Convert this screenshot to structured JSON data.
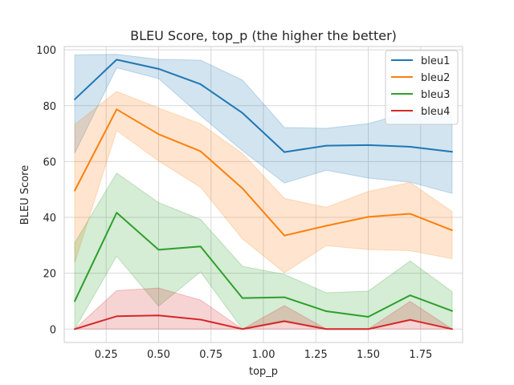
{
  "chart_data": {
    "type": "line",
    "title": "BLEU Score, top_p (the higher the better)",
    "xlabel": "top_p",
    "ylabel": "BLEU Score",
    "xlim": [
      0.05,
      1.95
    ],
    "ylim": [
      -4.8,
      101.2
    ],
    "xticks": [
      0.25,
      0.5,
      0.75,
      1.0,
      1.25,
      1.5,
      1.75
    ],
    "xtick_labels": [
      "0.25",
      "0.50",
      "0.75",
      "1.00",
      "1.25",
      "1.50",
      "1.75"
    ],
    "yticks": [
      0,
      20,
      40,
      60,
      80,
      100
    ],
    "ytick_labels": [
      "0",
      "20",
      "40",
      "60",
      "80",
      "100"
    ],
    "grid": true,
    "legend_position": "top-right",
    "x": [
      0.1,
      0.3,
      0.5,
      0.7,
      0.9,
      1.1,
      1.3,
      1.5,
      1.7,
      1.9
    ],
    "series": [
      {
        "name": "bleu1",
        "color": "#1f77b4",
        "values": [
          82.3,
          96.5,
          93.2,
          87.7,
          77.4,
          63.4,
          65.7,
          65.9,
          65.3,
          63.5
        ],
        "lower": [
          63.0,
          93.6,
          89.7,
          76.5,
          63.9,
          52.3,
          56.9,
          54.1,
          52.6,
          48.6
        ],
        "upper": [
          98.2,
          98.4,
          96.6,
          96.3,
          89.2,
          72.2,
          71.9,
          73.6,
          77.8,
          76.3
        ]
      },
      {
        "name": "bleu2",
        "color": "#ff7f0e",
        "values": [
          49.6,
          78.7,
          69.8,
          63.7,
          50.4,
          33.5,
          37.0,
          40.2,
          41.3,
          35.4
        ],
        "lower": [
          23.8,
          71.1,
          60.2,
          50.8,
          32.3,
          20.2,
          29.9,
          28.5,
          28.1,
          25.2
        ],
        "upper": [
          73.3,
          85.1,
          79.2,
          73.5,
          62.9,
          46.8,
          43.6,
          49.3,
          52.5,
          42.1
        ]
      },
      {
        "name": "bleu3",
        "color": "#2ca02c",
        "values": [
          10.0,
          41.7,
          28.4,
          29.6,
          11.1,
          11.4,
          6.4,
          4.4,
          12.1,
          6.5
        ],
        "lower": [
          0.0,
          26.1,
          8.2,
          20.5,
          0.0,
          3.2,
          0.0,
          0.0,
          3.5,
          0.0
        ],
        "upper": [
          30.9,
          55.9,
          45.3,
          39.3,
          22.5,
          19.6,
          13.0,
          13.6,
          24.4,
          13.4
        ]
      },
      {
        "name": "bleu4",
        "color": "#d62728",
        "values": [
          0.0,
          4.6,
          4.9,
          3.4,
          0.0,
          2.8,
          0.0,
          0.0,
          3.3,
          0.0
        ],
        "lower": [
          0.0,
          0.0,
          0.0,
          0.0,
          0.0,
          0.0,
          0.0,
          0.0,
          0.0,
          0.0
        ],
        "upper": [
          0.0,
          13.8,
          14.7,
          10.4,
          0.0,
          8.4,
          0.0,
          0.0,
          9.9,
          0.0
        ]
      }
    ]
  }
}
